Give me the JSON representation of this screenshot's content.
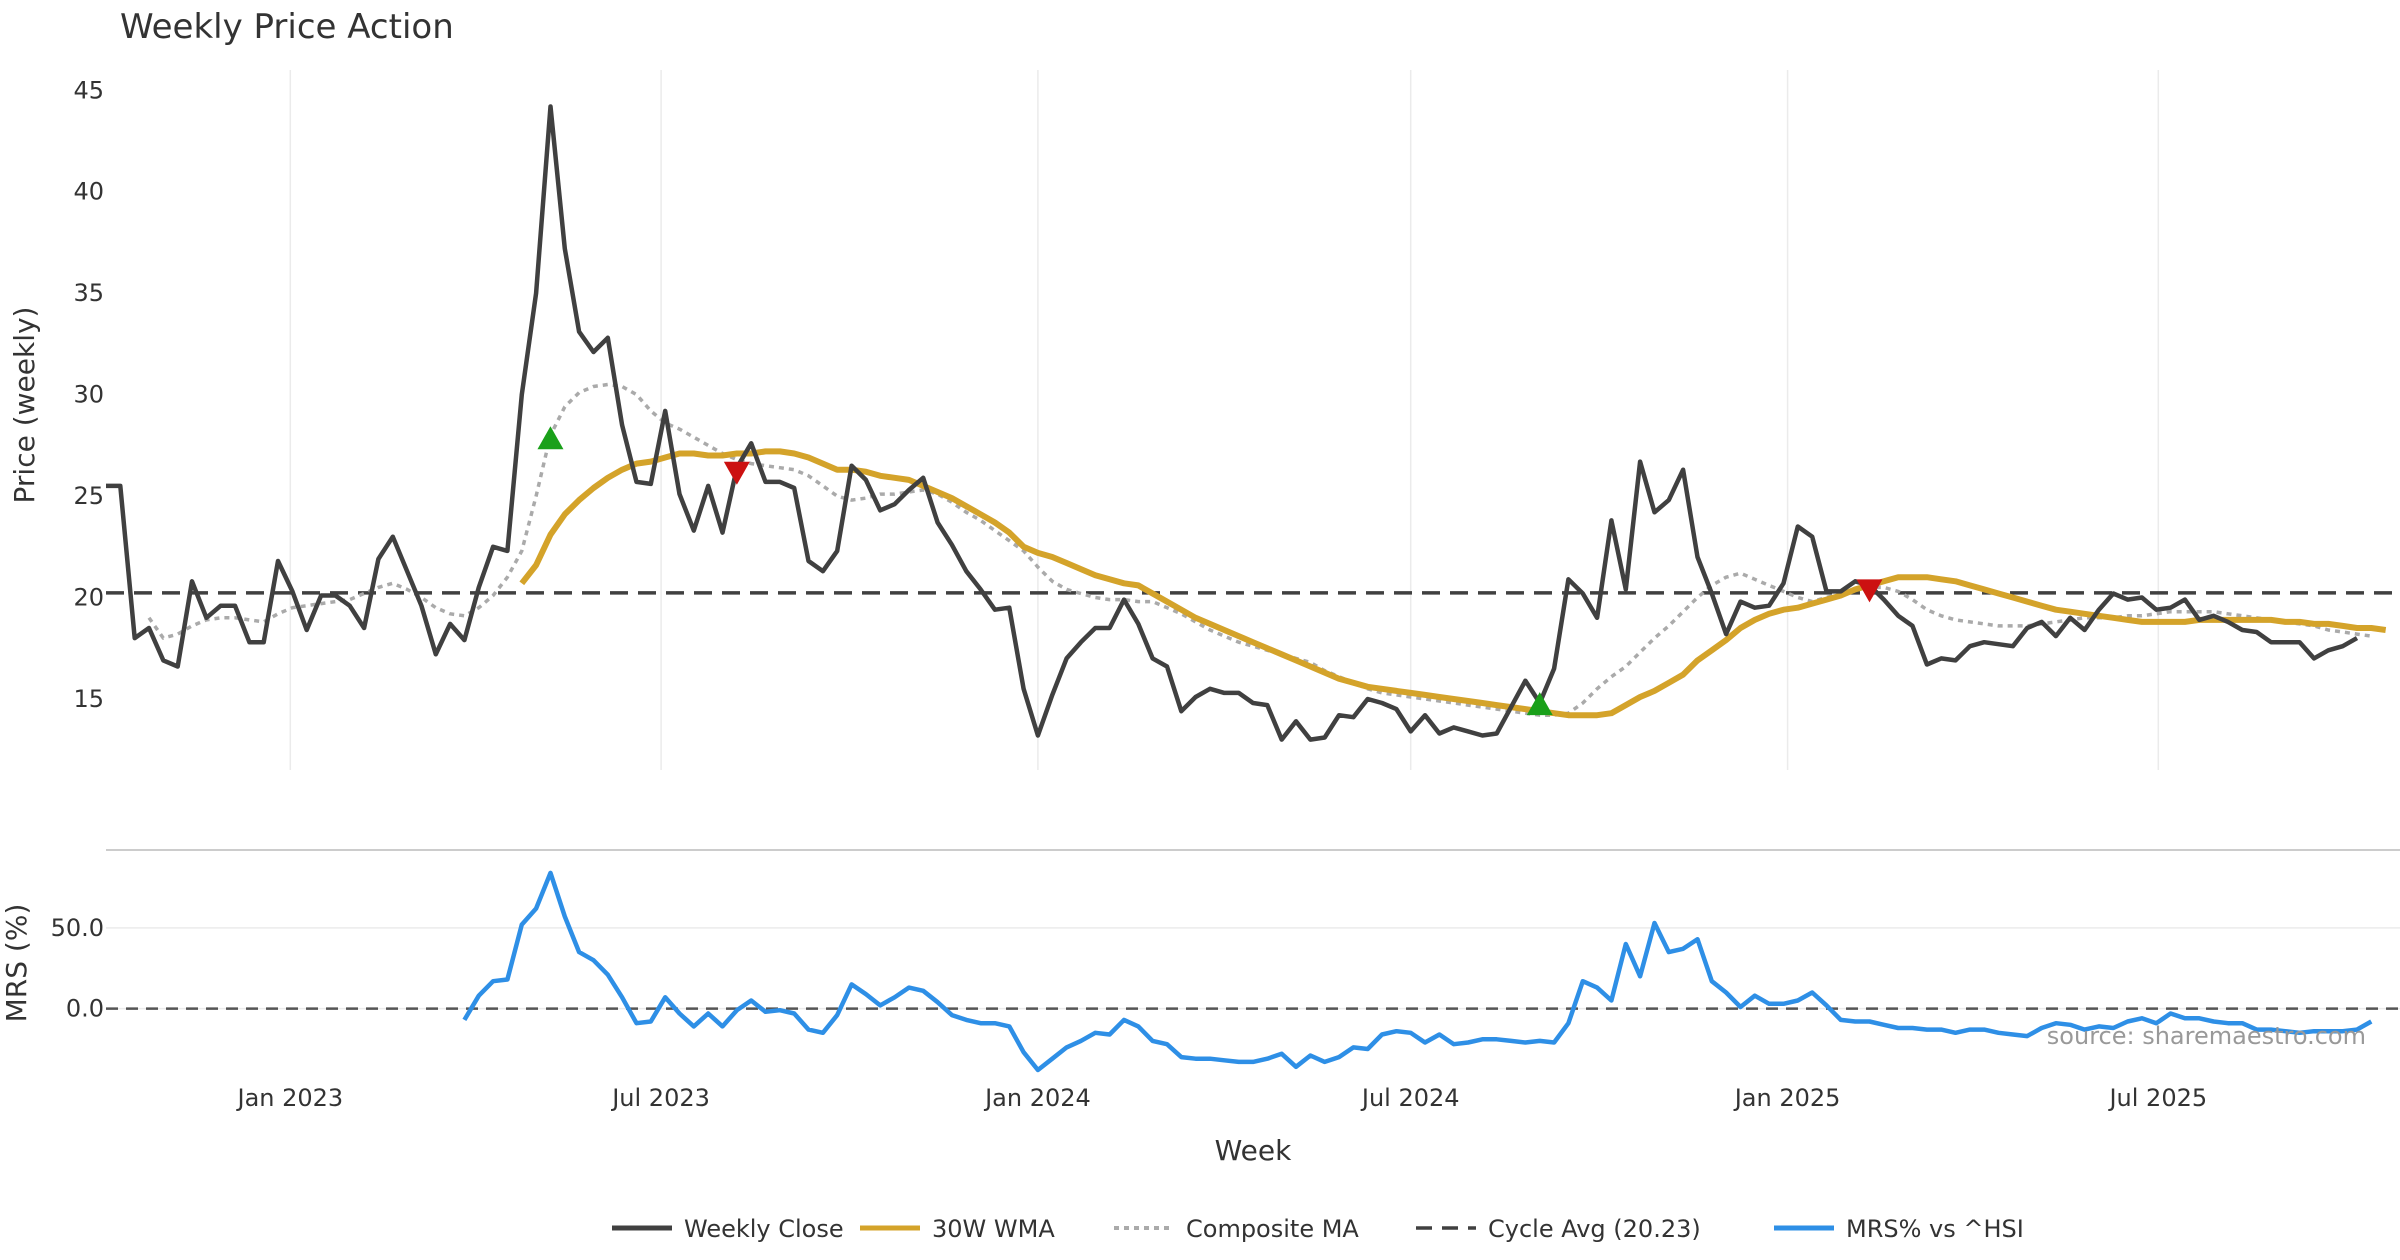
{
  "chart_data": {
    "type": "line",
    "title": "Weekly Price Action",
    "xlabel": "Week",
    "source_text": "source: sharemaestro.com",
    "x_ticks": [
      "Jan 2023",
      "Jul 2023",
      "Jan 2024",
      "Jul 2024",
      "Jan 2025",
      "Jul 2025"
    ],
    "x_start": "2022-10-03",
    "x_step_days": 7,
    "x_range": [
      "2022-10-03",
      "2025-10-27"
    ],
    "grid": true,
    "legend_position": "bottom",
    "price_panel": {
      "ylabel": "Price (weekly)",
      "ylim": [
        11.5,
        46
      ],
      "yticks": [
        15,
        20,
        25,
        30,
        35,
        40,
        45
      ],
      "cycle_avg": 20.23,
      "series": [
        {
          "name": "Weekly Close",
          "color": "#404040",
          "style": "solid",
          "values": [
            25.5,
            25.5,
            18.0,
            18.5,
            16.9,
            16.6,
            20.8,
            19.0,
            19.6,
            19.6,
            17.8,
            17.8,
            21.8,
            20.3,
            18.4,
            20.1,
            20.1,
            19.6,
            18.5,
            21.9,
            23.0,
            21.3,
            19.6,
            17.2,
            18.7,
            17.9,
            20.5,
            22.5,
            22.3,
            30.0,
            35.0,
            44.2,
            37.2,
            33.1,
            32.1,
            32.8,
            28.5,
            25.7,
            25.6,
            29.2,
            25.1,
            23.3,
            25.5,
            23.2,
            26.4,
            27.6,
            25.7,
            25.7,
            25.4,
            21.8,
            21.3,
            22.3,
            26.5,
            25.8,
            24.3,
            24.6,
            25.3,
            25.9,
            23.7,
            22.6,
            21.3,
            20.4,
            19.4,
            19.5,
            15.5,
            13.2,
            15.2,
            17.0,
            17.8,
            18.5,
            18.5,
            19.9,
            18.7,
            17.0,
            16.6,
            14.4,
            15.1,
            15.5,
            15.3,
            15.3,
            14.8,
            14.7,
            13.0,
            13.9,
            13.0,
            13.1,
            14.2,
            14.1,
            15.0,
            14.8,
            14.5,
            13.4,
            14.2,
            13.3,
            13.6,
            13.4,
            13.2,
            13.3,
            14.6,
            15.9,
            14.8,
            16.5,
            20.9,
            20.2,
            19.0,
            23.8,
            20.4,
            26.7,
            24.2,
            24.8,
            26.3,
            22.0,
            20.2,
            18.2,
            19.8,
            19.5,
            19.6,
            20.7,
            23.5,
            23.0,
            20.3,
            20.3,
            20.8,
            20.6,
            19.9,
            19.1,
            18.6,
            16.7,
            17.0,
            16.9,
            17.6,
            17.8,
            17.7,
            17.6,
            18.5,
            18.8,
            18.1,
            19.0,
            18.4,
            19.4,
            20.2,
            19.9,
            20.0,
            19.4,
            19.5,
            19.9,
            18.9,
            19.1,
            18.8,
            18.4,
            18.3,
            17.8,
            17.8,
            17.8,
            17.0,
            17.4,
            17.6,
            18.0
          ]
        },
        {
          "name": "30W WMA",
          "color": "#d4a32a",
          "style": "solid",
          "start_index": 29,
          "values": [
            20.7,
            21.6,
            23.1,
            24.1,
            24.8,
            25.4,
            25.9,
            26.3,
            26.6,
            26.7,
            26.9,
            27.1,
            27.1,
            27.0,
            27.0,
            27.1,
            27.1,
            27.2,
            27.2,
            27.1,
            26.9,
            26.6,
            26.3,
            26.3,
            26.2,
            26.0,
            25.9,
            25.8,
            25.5,
            25.2,
            24.9,
            24.5,
            24.1,
            23.7,
            23.2,
            22.5,
            22.2,
            22.0,
            21.7,
            21.4,
            21.1,
            20.9,
            20.7,
            20.6,
            20.2,
            19.8,
            19.4,
            19.0,
            18.7,
            18.4,
            18.1,
            17.8,
            17.5,
            17.2,
            16.9,
            16.6,
            16.3,
            16.0,
            15.8,
            15.6,
            15.5,
            15.4,
            15.3,
            15.2,
            15.1,
            15.0,
            14.9,
            14.8,
            14.7,
            14.6,
            14.5,
            14.4,
            14.3,
            14.2,
            14.2,
            14.2,
            14.3,
            14.7,
            15.1,
            15.4,
            15.8,
            16.2,
            16.9,
            17.4,
            17.9,
            18.5,
            18.9,
            19.2,
            19.4,
            19.5,
            19.7,
            19.9,
            20.1,
            20.4,
            20.6,
            20.8,
            21.0,
            21.0,
            21.0,
            20.9,
            20.8,
            20.6,
            20.4,
            20.2,
            20.0,
            19.8,
            19.6,
            19.4,
            19.3,
            19.2,
            19.1,
            19.0,
            18.9,
            18.8,
            18.8,
            18.8,
            18.8,
            18.9,
            18.9,
            18.9,
            18.9,
            18.9,
            18.9,
            18.8,
            18.8,
            18.7,
            18.7,
            18.6,
            18.5,
            18.5,
            18.4
          ]
        },
        {
          "name": "Composite MA",
          "color": "#aaaaaa",
          "style": "dotted",
          "start_index": 3,
          "values": [
            19.0,
            18.0,
            18.2,
            18.6,
            18.9,
            19.0,
            19.0,
            18.9,
            18.8,
            19.2,
            19.5,
            19.6,
            19.7,
            19.8,
            19.9,
            20.2,
            20.5,
            20.7,
            20.4,
            20.0,
            19.5,
            19.2,
            19.1,
            19.5,
            20.1,
            21.0,
            22.3,
            25.0,
            28.0,
            29.4,
            30.1,
            30.4,
            30.5,
            30.4,
            30.0,
            29.2,
            28.6,
            28.3,
            27.9,
            27.5,
            27.1,
            26.8,
            26.6,
            26.5,
            26.4,
            26.3,
            26.0,
            25.5,
            25.0,
            24.8,
            24.9,
            25.1,
            25.1,
            25.2,
            25.3,
            25.1,
            24.7,
            24.2,
            23.8,
            23.3,
            22.8,
            22.3,
            21.5,
            20.8,
            20.4,
            20.2,
            20.0,
            19.9,
            19.9,
            19.8,
            19.8,
            19.5,
            19.2,
            18.8,
            18.4,
            18.1,
            17.8,
            17.6,
            17.4,
            17.2,
            17.0,
            16.8,
            16.4,
            16.1,
            15.8,
            15.5,
            15.3,
            15.2,
            15.1,
            15.0,
            14.9,
            14.8,
            14.7,
            14.6,
            14.5,
            14.4,
            14.3,
            14.2,
            14.2,
            14.3,
            14.8,
            15.5,
            16.1,
            16.6,
            17.3,
            18.0,
            18.6,
            19.3,
            20.0,
            20.6,
            21.0,
            21.2,
            20.9,
            20.6,
            20.3,
            20.0,
            19.8,
            20.0,
            20.2,
            20.4,
            20.5,
            20.5,
            20.3,
            19.9,
            19.4,
            19.1,
            18.9,
            18.8,
            18.7,
            18.6,
            18.6,
            18.6,
            18.7,
            18.8,
            18.9,
            19.0,
            19.0,
            19.0,
            19.1,
            19.1,
            19.2,
            19.3,
            19.3,
            19.3,
            19.3,
            19.2,
            19.1,
            19.0,
            18.9,
            18.8,
            18.7,
            18.6,
            18.4,
            18.3,
            18.2,
            18.1
          ]
        }
      ],
      "signals": [
        {
          "type": "buy",
          "index": 31,
          "value": 27.8,
          "color": "#1aa01a"
        },
        {
          "type": "sell",
          "index": 44,
          "value": 26.2,
          "color": "#cc1111"
        },
        {
          "type": "buy",
          "index": 100,
          "value": 14.7,
          "color": "#1aa01a"
        },
        {
          "type": "sell",
          "index": 123,
          "value": 20.4,
          "color": "#cc1111"
        }
      ]
    },
    "mrs_panel": {
      "ylabel": "MRS (%)",
      "ylim": [
        -38,
        92
      ],
      "yticks": [
        "0.0",
        "50.0"
      ],
      "ytick_values": [
        0,
        50
      ],
      "series": {
        "name": "MRS% vs ^HSI",
        "color": "#2e8fe6",
        "start_index": 25,
        "values": [
          -7,
          8,
          17,
          18,
          52,
          62,
          84,
          57,
          35,
          30,
          21,
          7,
          -9,
          -8,
          7,
          -3,
          -11,
          -3,
          -11,
          -1,
          5,
          -2,
          -1,
          -3,
          -13,
          -15,
          -4,
          15,
          9,
          2,
          7,
          13,
          11,
          4,
          -4,
          -7,
          -9,
          -9,
          -11,
          -27,
          -38,
          -31,
          -24,
          -20,
          -15,
          -16,
          -7,
          -11,
          -20,
          -22,
          -30,
          -31,
          -31,
          -32,
          -33,
          -33,
          -31,
          -28,
          -36,
          -29,
          -33,
          -30,
          -24,
          -25,
          -16,
          -14,
          -15,
          -21,
          -16,
          -22,
          -21,
          -19,
          -19,
          -20,
          -21,
          -20,
          -21,
          -9,
          17,
          13,
          5,
          40,
          20,
          53,
          35,
          37,
          43,
          17,
          10,
          1,
          8,
          3,
          3,
          5,
          10,
          2,
          -7,
          -8,
          -8,
          -10,
          -12,
          -12,
          -13,
          -13,
          -15,
          -13,
          -13,
          -15,
          -16,
          -17,
          -12,
          -9,
          -10,
          -13,
          -11,
          -12,
          -8,
          -6,
          -9,
          -3,
          -6,
          -6,
          -8,
          -9,
          -9,
          -13,
          -13,
          -14,
          -15,
          -14,
          -14,
          -14,
          -13,
          -8
        ]
      }
    },
    "legend": [
      {
        "label": "Weekly Close",
        "color": "#404040",
        "style": "solid"
      },
      {
        "label": "30W WMA",
        "color": "#d4a32a",
        "style": "solid"
      },
      {
        "label": "Composite MA",
        "color": "#aaaaaa",
        "style": "dotted"
      },
      {
        "label": "Cycle Avg (20.23)",
        "color": "#404040",
        "style": "dashed"
      },
      {
        "label": "MRS% vs ^HSI",
        "color": "#2e8fe6",
        "style": "solid"
      }
    ]
  }
}
